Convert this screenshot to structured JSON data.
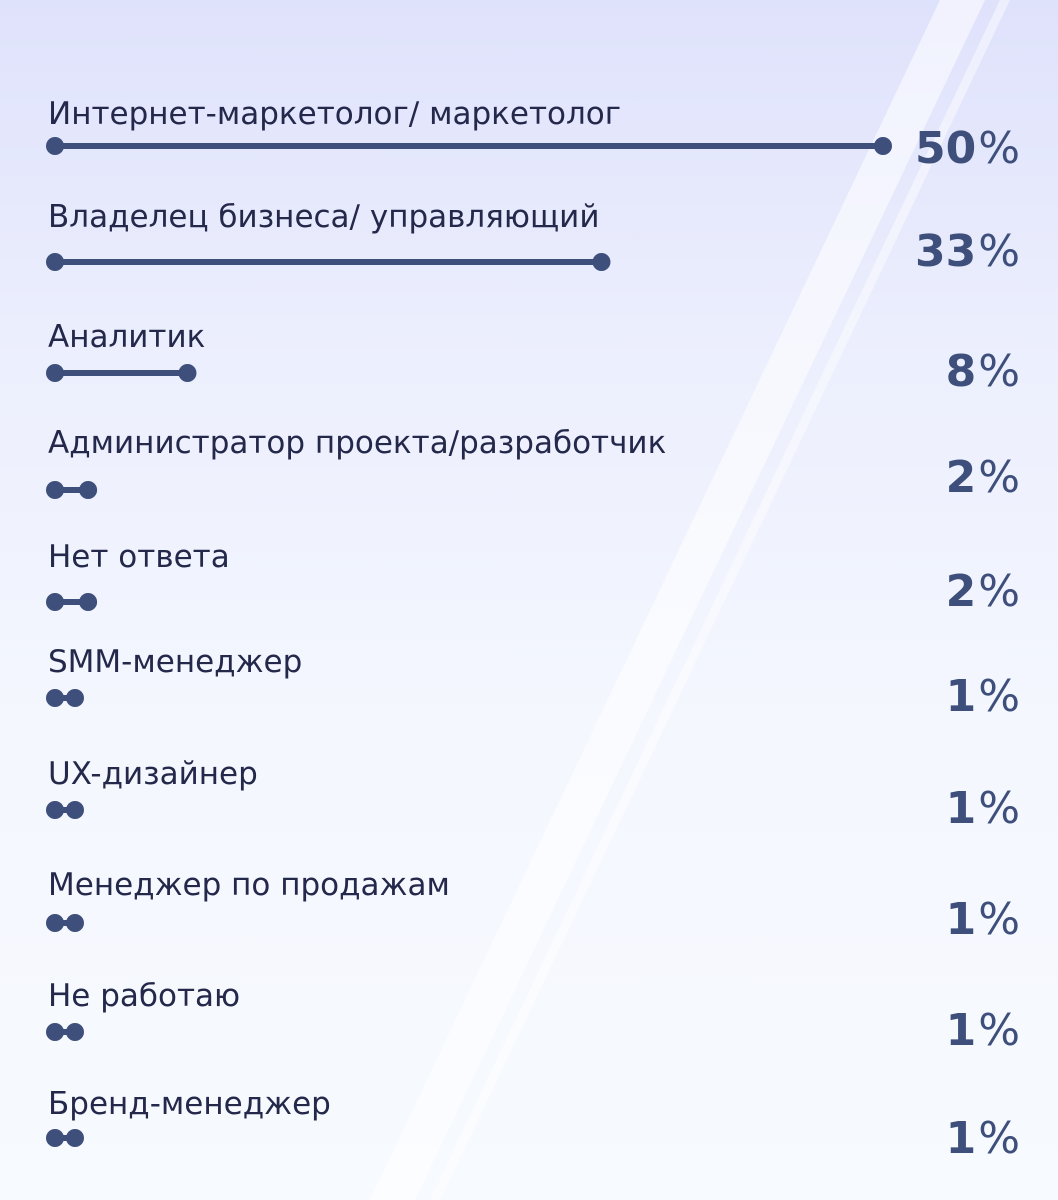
{
  "colors": {
    "bar": "#3e4f7c",
    "label": "#24284a",
    "percent": "#3e4f7c",
    "background_top": "#dfe2fb",
    "background_bottom": "#f7fafe"
  },
  "chart_data": {
    "type": "bar",
    "orientation": "horizontal",
    "title": "",
    "xlabel": "",
    "ylabel": "",
    "grid": false,
    "legend": "none",
    "unit": "%",
    "xlim": [
      0,
      50
    ],
    "categories": [
      "Интернет-маркетолог/ маркетолог",
      "Владелец бизнеса/ управляющий",
      "Аналитик",
      "Администратор проекта/разработчик",
      "Нет ответа",
      "SMM-менеджер",
      "UX-дизайнер",
      "Менеджер по продажам",
      "Не работаю",
      "Бренд-менеджер"
    ],
    "values": [
      50,
      33,
      8,
      2,
      2,
      1,
      1,
      1,
      1,
      1
    ],
    "value_labels": [
      "50",
      "33",
      "8",
      "2",
      "2",
      "1",
      "1",
      "1",
      "1",
      "1"
    ]
  }
}
